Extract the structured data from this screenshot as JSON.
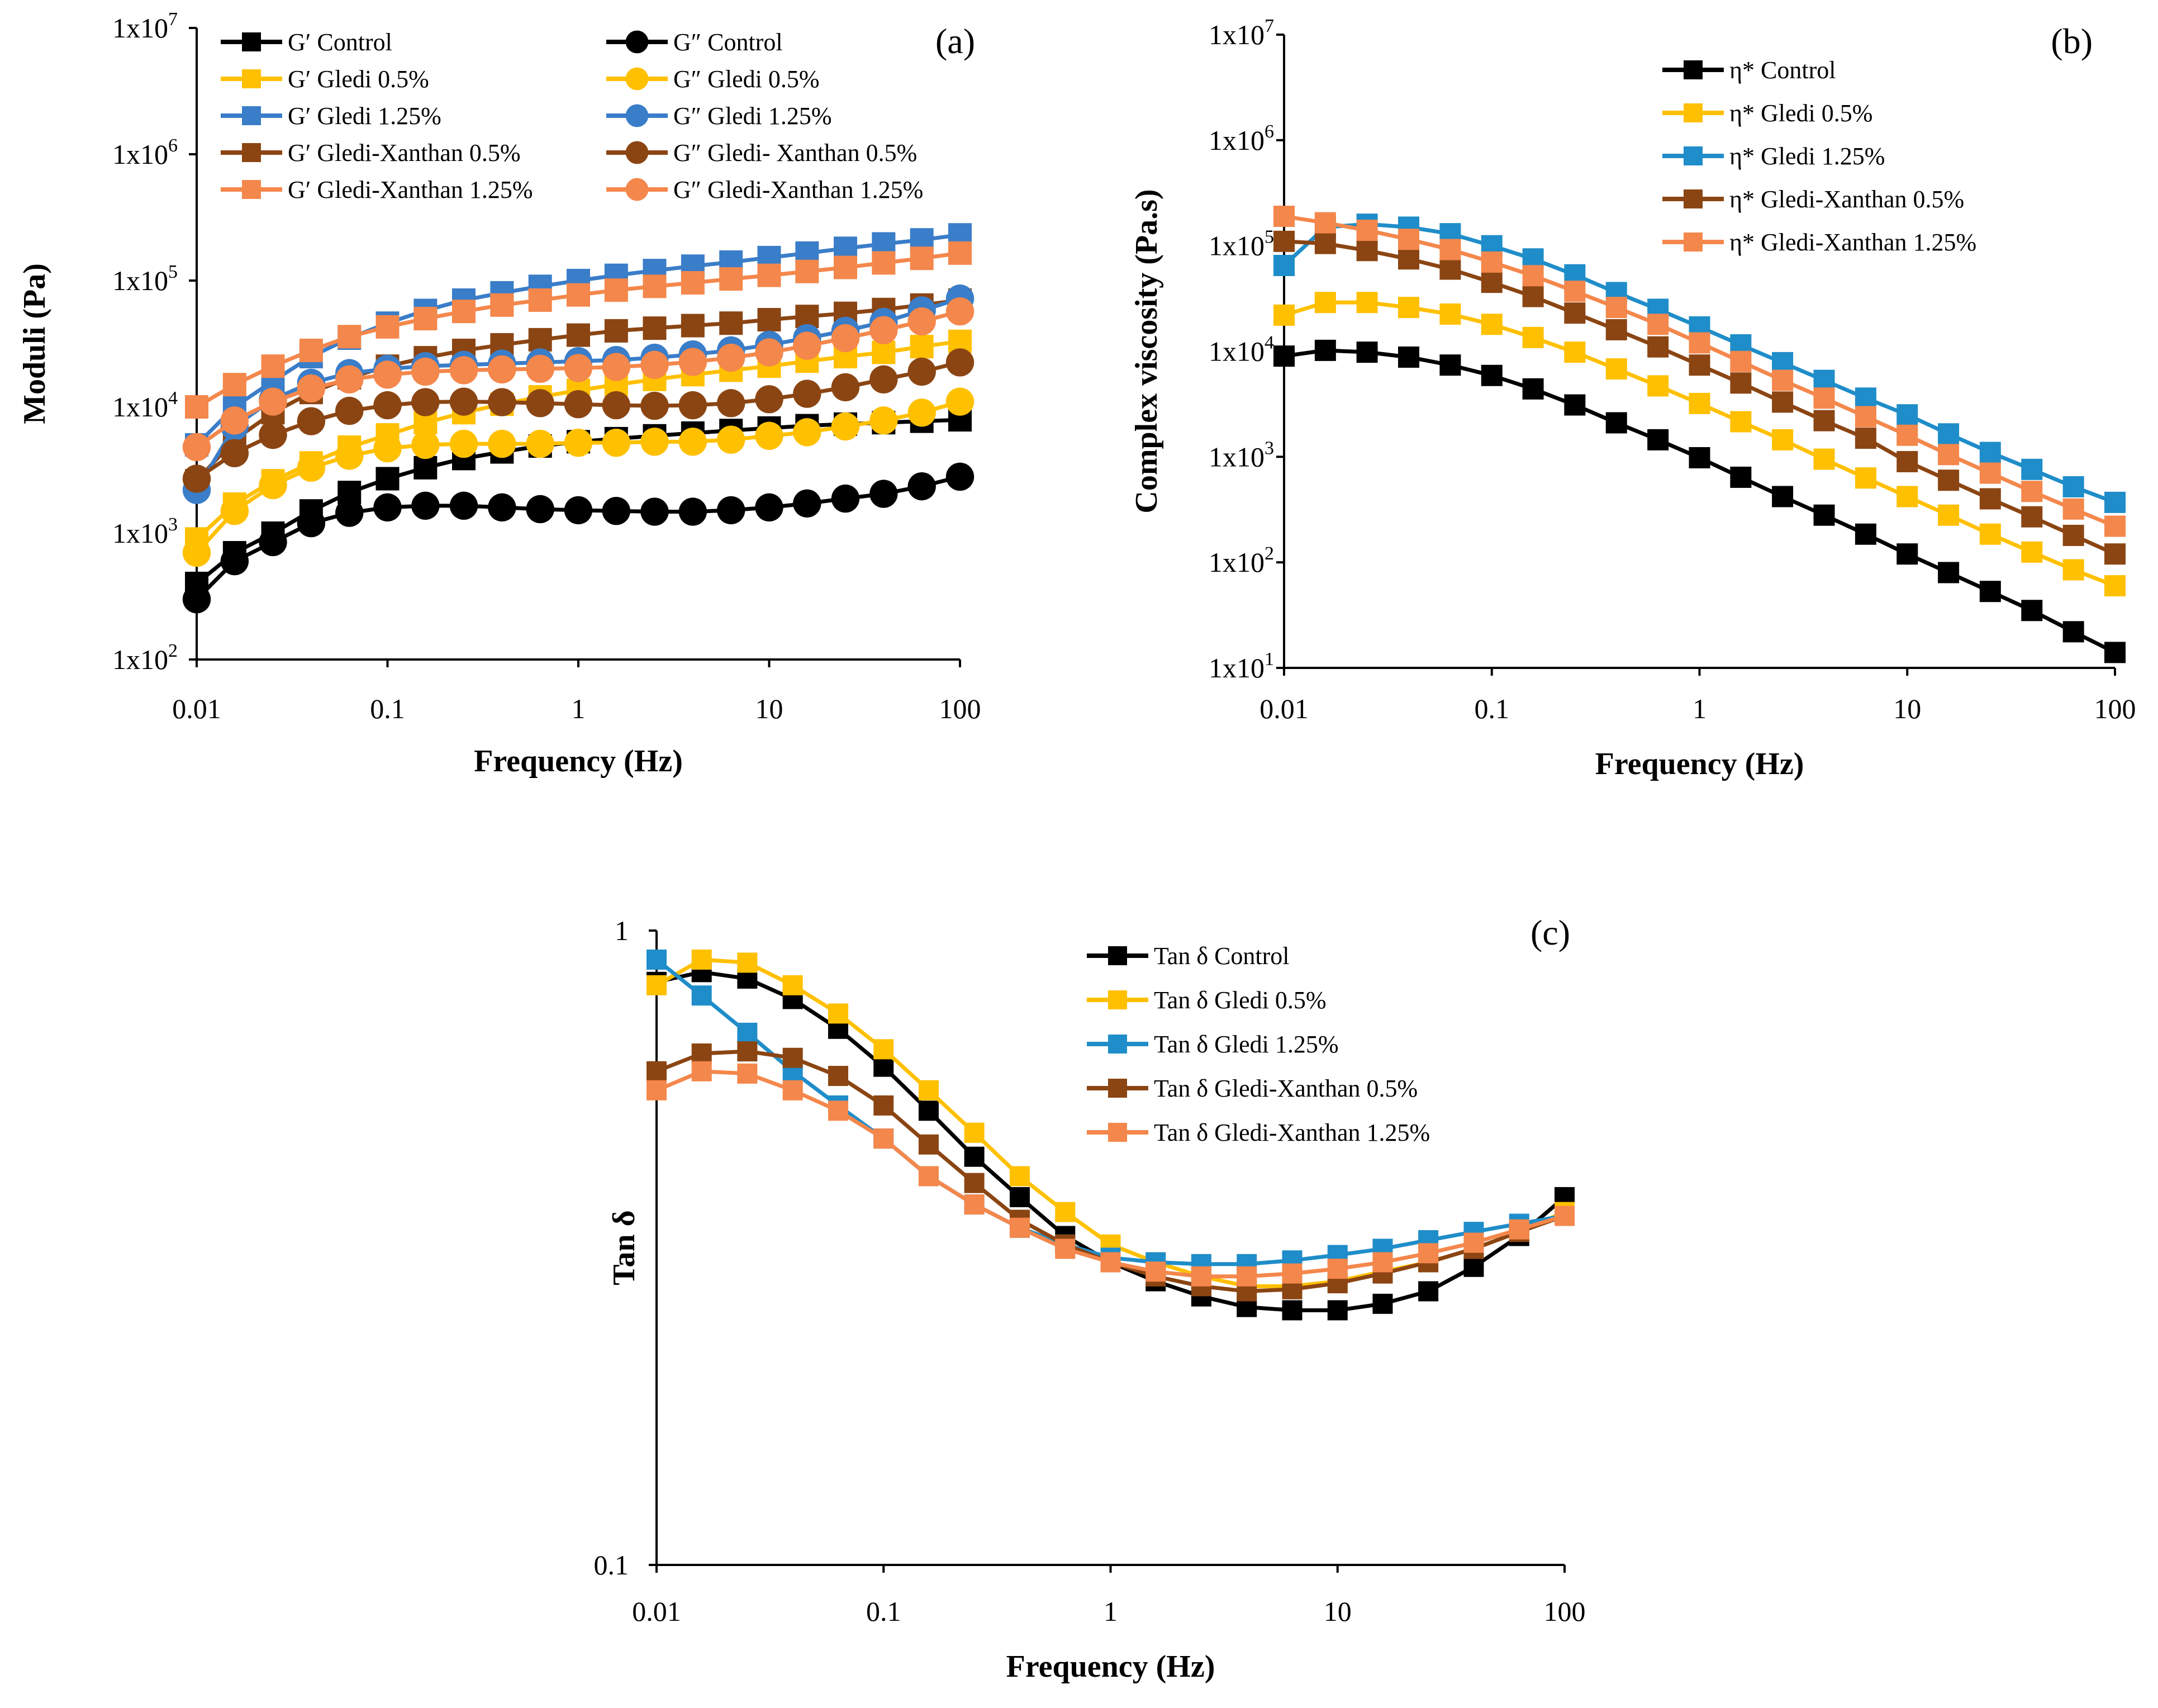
{
  "figure": {
    "panels": [
      "(a)",
      "(b)",
      "(c)"
    ]
  },
  "chart_data": [
    {
      "id": "a",
      "type": "line",
      "label": "(a)",
      "xlabel": "Frequency (Hz)",
      "ylabel": "Moduli (Pa)",
      "xscale": "log",
      "yscale": "log",
      "xlim": [
        0.01,
        100
      ],
      "ylim": [
        100,
        10000000
      ],
      "xticks": [
        "0.01",
        "0.1",
        "1",
        "10",
        "100"
      ],
      "yticks": [
        {
          "base": "1x10",
          "exp": "2"
        },
        {
          "base": "1x10",
          "exp": "3"
        },
        {
          "base": "1x10",
          "exp": "4"
        },
        {
          "base": "1x10",
          "exp": "5"
        },
        {
          "base": "1x10",
          "exp": "6"
        },
        {
          "base": "1x10",
          "exp": "7"
        }
      ],
      "x": [
        0.01,
        0.0158,
        0.0251,
        0.0398,
        0.0631,
        0.1,
        0.158,
        0.251,
        0.398,
        0.631,
        1,
        1.58,
        2.51,
        3.98,
        6.31,
        10,
        15.8,
        25.1,
        39.8,
        63.1,
        100
      ],
      "legend_columns": 2,
      "series": [
        {
          "name": "G′ Control",
          "marker": "square",
          "color": "#000000",
          "values": [
            400,
            700,
            1000,
            1500,
            2100,
            2700,
            3300,
            3900,
            4400,
            4900,
            5300,
            5600,
            5900,
            6200,
            6500,
            6800,
            7100,
            7300,
            7500,
            7700,
            7900
          ]
        },
        {
          "name": "G′ Gledi 0.5%",
          "marker": "square",
          "color": "#FFC000",
          "values": [
            900,
            1700,
            2600,
            3600,
            4800,
            6000,
            7500,
            9000,
            10500,
            12000,
            13500,
            15000,
            16500,
            18000,
            19500,
            21000,
            23000,
            25000,
            27000,
            30000,
            33000
          ]
        },
        {
          "name": "G′ Gledi 1.25%",
          "marker": "square",
          "color": "#3A7DC9",
          "values": [
            5000,
            10000,
            16000,
            25000,
            35000,
            46000,
            58000,
            70000,
            80000,
            90000,
            100000,
            110000,
            120000,
            130000,
            140000,
            152000,
            165000,
            180000,
            195000,
            210000,
            230000
          ]
        },
        {
          "name": "G′ Gledi-Xanthan 0.5%",
          "marker": "square",
          "color": "#8B4513",
          "values": [
            2600,
            5500,
            9000,
            13000,
            17000,
            21000,
            24500,
            28000,
            31000,
            34000,
            37000,
            40000,
            42000,
            44000,
            46000,
            49000,
            52000,
            55000,
            59000,
            64000,
            70000
          ]
        },
        {
          "name": "G′ Gledi-Xanthan 1.25%",
          "marker": "square",
          "color": "#F4874B",
          "values": [
            10000,
            15000,
            21000,
            28000,
            36000,
            43000,
            50000,
            57000,
            64000,
            70000,
            77000,
            84000,
            90000,
            96000,
            103000,
            110000,
            118000,
            127000,
            138000,
            150000,
            165000
          ]
        },
        {
          "name": "G″ Control",
          "marker": "circle",
          "color": "#000000",
          "values": [
            300,
            600,
            850,
            1200,
            1450,
            1600,
            1650,
            1650,
            1600,
            1550,
            1520,
            1500,
            1480,
            1480,
            1520,
            1600,
            1720,
            1880,
            2050,
            2350,
            2800
          ]
        },
        {
          "name": "G″ Gledi 0.5%",
          "marker": "circle",
          "color": "#FFC000",
          "values": [
            700,
            1500,
            2400,
            3300,
            4100,
            4700,
            5000,
            5100,
            5100,
            5100,
            5200,
            5200,
            5300,
            5300,
            5500,
            5900,
            6300,
            7000,
            7800,
            9000,
            11000
          ]
        },
        {
          "name": "G″ Gledi 1.25%",
          "marker": "circle",
          "color": "#3A7DC9",
          "values": [
            2200,
            7000,
            11500,
            15500,
            18500,
            20000,
            21000,
            21500,
            22000,
            22500,
            23000,
            23500,
            24500,
            26000,
            28000,
            31000,
            35000,
            40000,
            47000,
            58000,
            72000
          ]
        },
        {
          "name": "G″ Gledi- Xanthan 0.5%",
          "marker": "circle",
          "color": "#8B4513",
          "values": [
            2700,
            4300,
            6000,
            7700,
            9300,
            10300,
            10900,
            11000,
            10900,
            10700,
            10500,
            10300,
            10200,
            10300,
            10700,
            11500,
            12700,
            14300,
            16500,
            19000,
            22500
          ]
        },
        {
          "name": "G″ Gledi-Xanthan 1.25%",
          "marker": "circle",
          "color": "#F4874B",
          "values": [
            4800,
            7800,
            11000,
            14000,
            16500,
            18000,
            19000,
            19500,
            19800,
            20000,
            20300,
            20700,
            21500,
            22700,
            24500,
            27000,
            30500,
            35000,
            40500,
            47500,
            57000
          ]
        }
      ]
    },
    {
      "id": "b",
      "type": "line",
      "label": "(b)",
      "xlabel": "Frequency (Hz)",
      "ylabel": "Complex viscosity (Pa.s)",
      "xscale": "log",
      "yscale": "log",
      "xlim": [
        0.01,
        100
      ],
      "ylim": [
        10,
        10000000
      ],
      "xticks": [
        "0.01",
        "0.1",
        "1",
        "10",
        "100"
      ],
      "yticks": [
        {
          "base": "1x10",
          "exp": "1"
        },
        {
          "base": "1x10",
          "exp": "2"
        },
        {
          "base": "1x10",
          "exp": "3"
        },
        {
          "base": "1x10",
          "exp": "4"
        },
        {
          "base": "1x10",
          "exp": "5"
        },
        {
          "base": "1x10",
          "exp": "6"
        },
        {
          "base": "1x10",
          "exp": "7"
        }
      ],
      "x": [
        0.01,
        0.0158,
        0.0251,
        0.0398,
        0.0631,
        0.1,
        0.158,
        0.251,
        0.398,
        0.631,
        1,
        1.58,
        2.51,
        3.98,
        6.31,
        10,
        15.8,
        25.1,
        39.8,
        63.1,
        100
      ],
      "legend_columns": 1,
      "series": [
        {
          "name": "η* Control",
          "marker": "square",
          "color": "#000000",
          "values": [
            9000,
            10200,
            9800,
            8800,
            7400,
            5900,
            4400,
            3100,
            2100,
            1450,
            980,
            640,
            420,
            280,
            185,
            120,
            80,
            53,
            35,
            22,
            14
          ]
        },
        {
          "name": "η* Gledi 0.5%",
          "marker": "square",
          "color": "#FFC000",
          "values": [
            22000,
            29000,
            29000,
            26000,
            22500,
            18000,
            13500,
            9800,
            6800,
            4700,
            3200,
            2150,
            1450,
            950,
            630,
            420,
            280,
            185,
            125,
            85,
            60
          ]
        },
        {
          "name": "η* Gledi 1.25%",
          "marker": "square",
          "color": "#1F8DC9",
          "values": [
            65000,
            150000,
            160000,
            150000,
            130000,
            100000,
            75000,
            53000,
            36000,
            25000,
            17000,
            11500,
            7800,
            5300,
            3600,
            2500,
            1650,
            1100,
            760,
            520,
            370
          ]
        },
        {
          "name": "η* Gledi-Xanthan 0.5%",
          "marker": "square",
          "color": "#8B4513",
          "values": [
            110000,
            105000,
            90000,
            75000,
            60000,
            45000,
            33000,
            23000,
            16000,
            11000,
            7400,
            5000,
            3300,
            2200,
            1500,
            900,
            600,
            400,
            270,
            180,
            120
          ]
        },
        {
          "name": "η* Gledi-Xanthan 1.25%",
          "marker": "square",
          "color": "#F4874B",
          "values": [
            190000,
            165000,
            140000,
            115000,
            92000,
            70000,
            52000,
            37000,
            26000,
            18000,
            12000,
            8000,
            5300,
            3600,
            2400,
            1600,
            1050,
            700,
            470,
            320,
            220
          ]
        }
      ]
    },
    {
      "id": "c",
      "type": "line",
      "label": "(c)",
      "xlabel": "Frequency (Hz)",
      "ylabel": "Tan δ",
      "xscale": "log",
      "yscale": "log",
      "xlim": [
        0.01,
        100
      ],
      "ylim": [
        0.1,
        1
      ],
      "xticks": [
        "0.01",
        "0.1",
        "1",
        "10",
        "100"
      ],
      "yticks": [
        {
          "base": "0.1",
          "exp": ""
        },
        {
          "base": "1",
          "exp": ""
        }
      ],
      "x": [
        0.01,
        0.0158,
        0.0251,
        0.0398,
        0.0631,
        0.1,
        0.158,
        0.251,
        0.398,
        0.631,
        1,
        1.58,
        2.51,
        3.98,
        6.31,
        10,
        15.8,
        25.1,
        39.8,
        63.1,
        100
      ],
      "legend_columns": 1,
      "series": [
        {
          "name": "Tan δ Control",
          "marker": "square",
          "color": "#000000",
          "values": [
            0.83,
            0.86,
            0.84,
            0.78,
            0.7,
            0.61,
            0.52,
            0.44,
            0.38,
            0.33,
            0.3,
            0.28,
            0.265,
            0.255,
            0.252,
            0.252,
            0.258,
            0.27,
            0.295,
            0.33,
            0.38
          ]
        },
        {
          "name": "Tan δ Gledi 0.5%",
          "marker": "square",
          "color": "#FFC000",
          "values": [
            0.82,
            0.9,
            0.89,
            0.82,
            0.74,
            0.65,
            0.56,
            0.48,
            0.41,
            0.36,
            0.32,
            0.3,
            0.285,
            0.275,
            0.275,
            0.28,
            0.29,
            0.3,
            0.315,
            0.335,
            0.36
          ]
        },
        {
          "name": "Tan δ Gledi 1.25%",
          "marker": "square",
          "color": "#1F8DC9",
          "values": [
            0.9,
            0.79,
            0.69,
            0.6,
            0.53,
            0.47,
            0.41,
            0.37,
            0.34,
            0.32,
            0.305,
            0.3,
            0.298,
            0.298,
            0.302,
            0.308,
            0.315,
            0.325,
            0.335,
            0.345,
            0.355
          ]
        },
        {
          "name": "Tan δ Gledi-Xanthan 0.5%",
          "marker": "square",
          "color": "#8B4513",
          "values": [
            0.6,
            0.64,
            0.645,
            0.63,
            0.59,
            0.53,
            0.46,
            0.4,
            0.35,
            0.32,
            0.3,
            0.285,
            0.275,
            0.27,
            0.272,
            0.278,
            0.288,
            0.3,
            0.315,
            0.335,
            0.355
          ]
        },
        {
          "name": "Tan δ Gledi-Xanthan 1.25%",
          "marker": "square",
          "color": "#F4874B",
          "values": [
            0.56,
            0.6,
            0.595,
            0.56,
            0.52,
            0.47,
            0.41,
            0.37,
            0.34,
            0.315,
            0.3,
            0.29,
            0.285,
            0.285,
            0.288,
            0.293,
            0.3,
            0.31,
            0.322,
            0.338,
            0.355
          ]
        }
      ]
    }
  ]
}
